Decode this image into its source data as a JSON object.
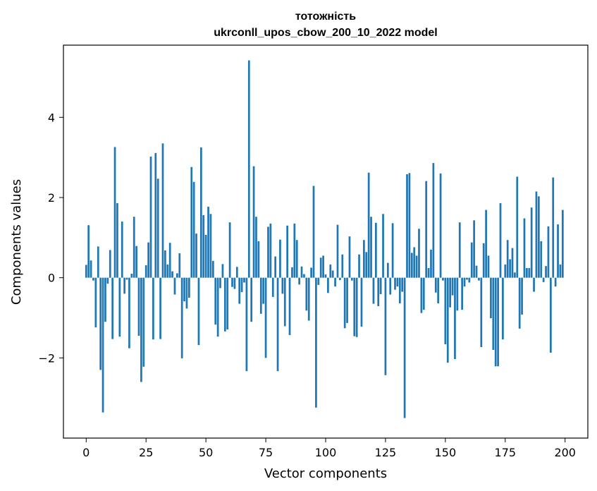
{
  "chart_data": {
    "type": "bar",
    "title": "тотожність",
    "subtitle": "ukrconll_upos_cbow_200_10_2022 model",
    "xlabel": "Vector components",
    "ylabel": "Components values",
    "xlim": [
      -9.5,
      209.5
    ],
    "ylim": [
      -4.0,
      5.8
    ],
    "xticks": [
      0,
      25,
      50,
      75,
      100,
      125,
      150,
      175,
      200
    ],
    "xtick_labels": [
      "0",
      "25",
      "50",
      "75",
      "100",
      "125",
      "150",
      "175",
      "200"
    ],
    "yticks": [
      -2,
      0,
      2,
      4
    ],
    "ytick_labels": [
      "−2",
      "0",
      "2",
      "4"
    ],
    "grid": false,
    "color": "#1f77b4",
    "values": [
      0.32,
      1.31,
      0.43,
      -0.07,
      -1.24,
      0.78,
      -2.3,
      -3.36,
      -1.1,
      -0.15,
      0.69,
      -1.53,
      3.26,
      1.86,
      -1.47,
      1.4,
      -0.4,
      -0.05,
      -1.76,
      0.1,
      1.52,
      0.79,
      -1.45,
      -2.6,
      -2.22,
      0.31,
      0.88,
      3.02,
      -1.54,
      3.11,
      2.47,
      -1.53,
      3.35,
      0.68,
      0.33,
      0.87,
      0.16,
      -0.42,
      0.11,
      0.61,
      -2.01,
      -0.59,
      -0.77,
      -0.5,
      2.76,
      2.39,
      1.1,
      -1.68,
      3.25,
      1.56,
      1.07,
      1.77,
      1.59,
      0.42,
      -1.17,
      -1.47,
      -0.26,
      0.34,
      -1.34,
      -1.29,
      1.38,
      -0.23,
      -0.28,
      0.27,
      -0.65,
      -0.36,
      -0.12,
      -2.33,
      5.42,
      -1.1,
      2.78,
      1.52,
      0.91,
      -0.9,
      -0.65,
      -2.0,
      1.27,
      1.35,
      -0.48,
      0.53,
      -2.33,
      0.95,
      -0.4,
      -1.21,
      1.3,
      -1.43,
      0.26,
      1.35,
      0.94,
      -0.17,
      0.28,
      0.09,
      -0.82,
      -1.07,
      0.25,
      2.29,
      -3.24,
      -0.18,
      0.5,
      0.55,
      0.08,
      -0.38,
      0.33,
      0.18,
      -0.22,
      1.32,
      -0.06,
      0.58,
      -1.26,
      -1.13,
      1.03,
      -0.07,
      -1.46,
      -1.48,
      0.58,
      -1.22,
      0.94,
      0.64,
      2.62,
      1.52,
      -0.65,
      1.37,
      -0.71,
      -0.41,
      1.59,
      -2.43,
      0.37,
      -0.42,
      1.36,
      -0.3,
      -0.22,
      -0.64,
      -0.35,
      -3.5,
      2.58,
      2.61,
      0.62,
      0.76,
      0.55,
      1.22,
      -0.88,
      -0.8,
      2.41,
      0.24,
      0.7,
      2.86,
      -0.37,
      -0.64,
      2.6,
      -0.07,
      -1.66,
      -2.12,
      -0.74,
      -0.44,
      -2.03,
      -0.82,
      1.38,
      -0.8,
      -0.22,
      -0.05,
      -0.12,
      0.88,
      1.43,
      0.3,
      -0.07,
      -1.73,
      0.86,
      1.69,
      0.55,
      -1.01,
      -1.8,
      -2.21,
      -2.21,
      1.86,
      -1.54,
      0.33,
      0.94,
      0.46,
      0.74,
      0.13,
      2.52,
      -1.27,
      -0.92,
      1.48,
      0.24,
      0.24,
      1.75,
      -0.35,
      2.15,
      2.03,
      0.91,
      -0.11,
      0.29,
      1.28,
      -1.87,
      2.5,
      -0.22,
      1.33,
      0.33,
      1.69
    ]
  }
}
